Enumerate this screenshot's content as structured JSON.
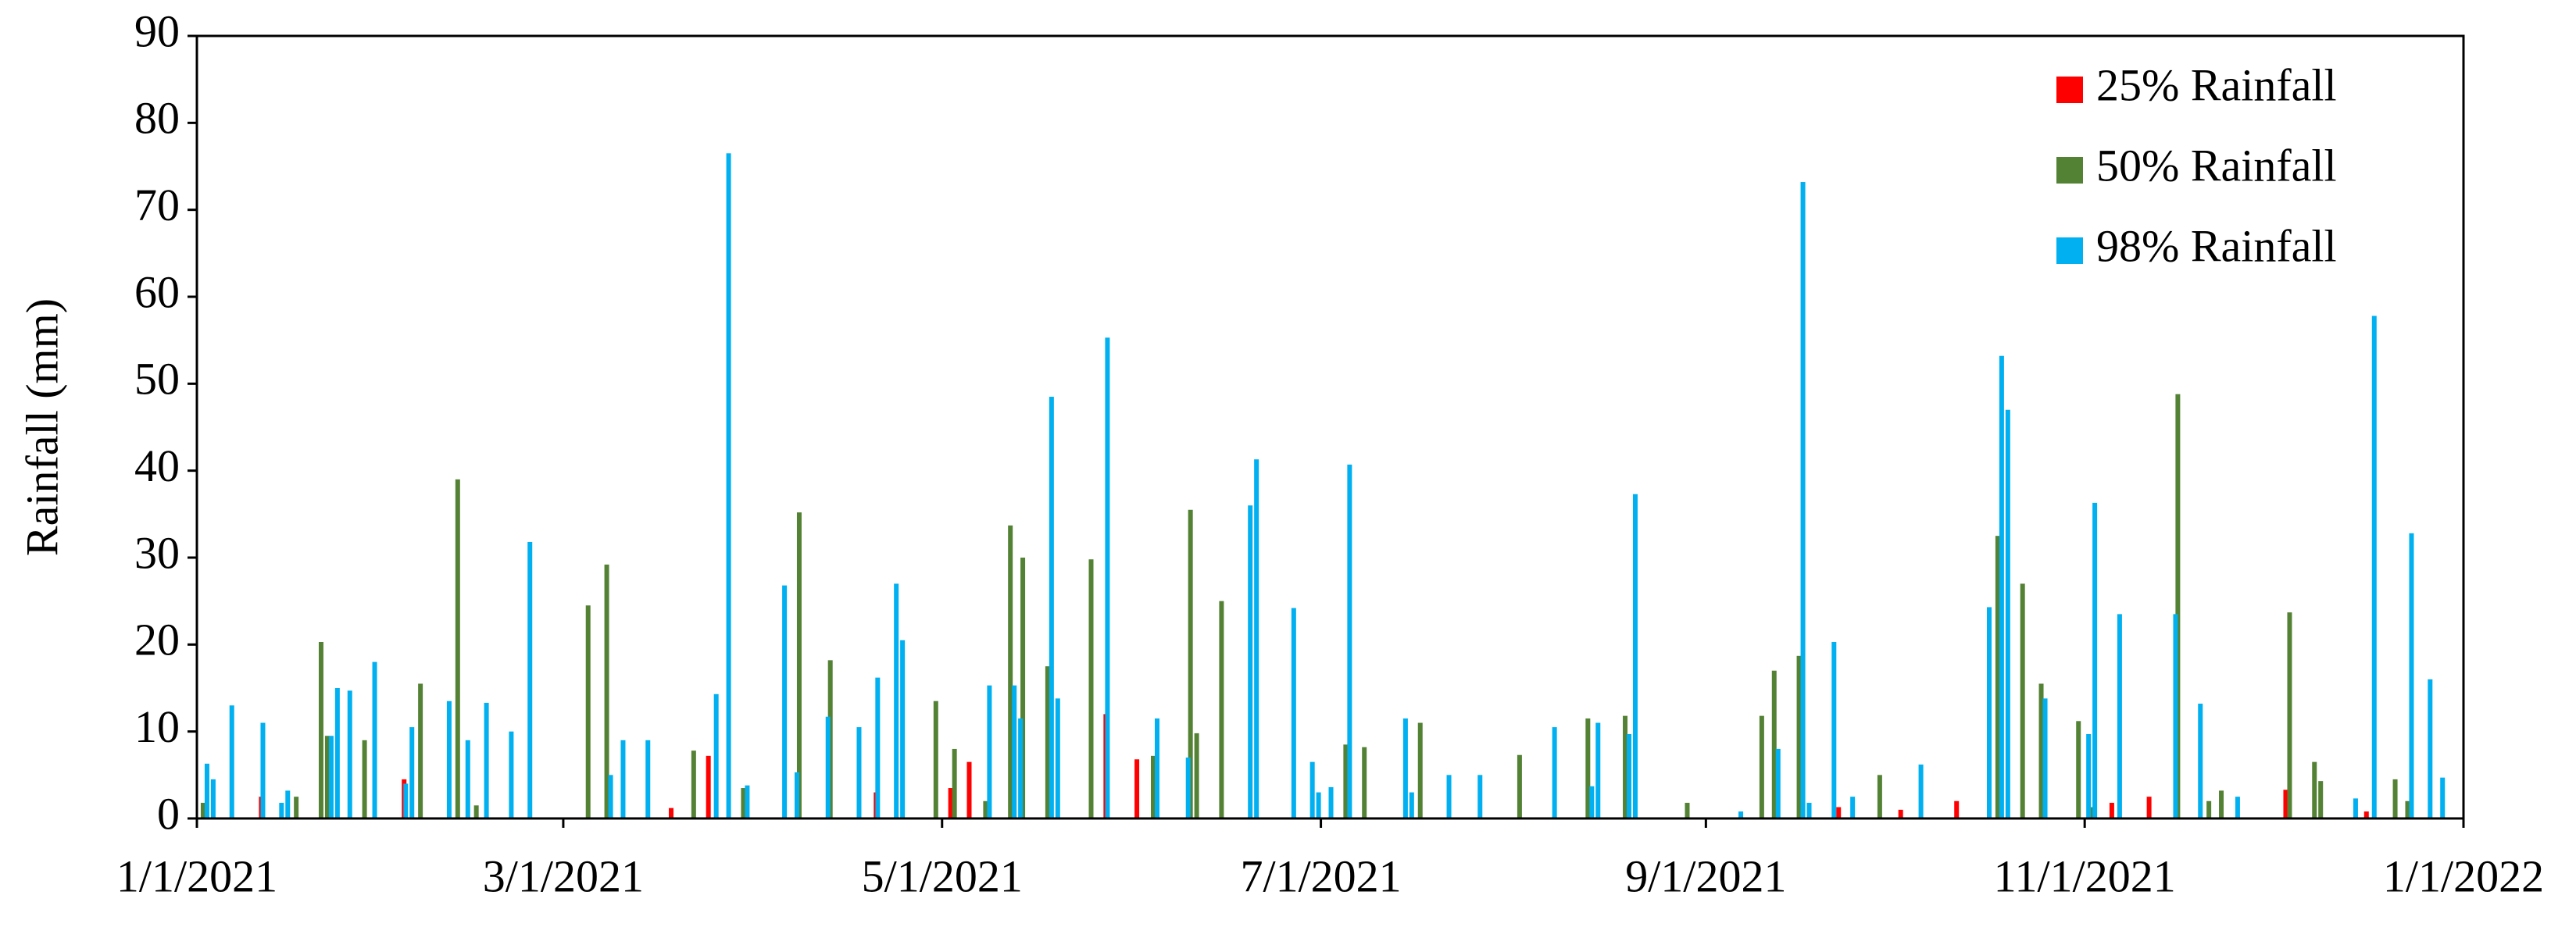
{
  "chart_data": {
    "type": "bar",
    "y_label": "Rainfall (mm)",
    "x": [
      "1/2/2021",
      "1/3/2021",
      "1/6/2021",
      "1/11/2021",
      "1/12/2021",
      "1/14/2021",
      "1/15/2021",
      "1/17/2021",
      "1/21/2021",
      "1/22/2021",
      "1/23/2021",
      "1/25/2021",
      "1/28/2021",
      "1/29/2021",
      "2/3/2021",
      "2/4/2021",
      "2/6/2021",
      "2/10/2021",
      "2/12/2021",
      "2/13/2021",
      "2/15/2021",
      "2/16/2021",
      "2/20/2021",
      "2/23/2021",
      "3/5/2021",
      "3/8/2021",
      "3/10/2021",
      "3/14/2021",
      "3/19/2021",
      "3/22/2021",
      "3/25/2021",
      "3/27/2021",
      "3/30/2021",
      "4/5/2021",
      "4/7/2021",
      "4/8/2021",
      "4/12/2021",
      "4/13/2021",
      "4/17/2021",
      "4/20/2021",
      "4/21/2021",
      "4/23/2021",
      "4/24/2021",
      "4/30/2021",
      "5/3/2021",
      "5/6/2021",
      "5/8/2021",
      "5/12/2021",
      "5/13/2021",
      "5/14/2021",
      "5/18/2021",
      "5/19/2021",
      "5/25/2021",
      "5/27/2021",
      "5/28/2021",
      "6/2/2021",
      "6/4/2021",
      "6/9/2021",
      "6/10/2021",
      "6/11/2021",
      "6/15/2021",
      "6/19/2021",
      "6/20/2021",
      "6/26/2021",
      "6/29/2021",
      "6/30/2021",
      "7/2/2021",
      "7/5/2021",
      "7/8/2021",
      "7/14/2021",
      "7/15/2021",
      "7/17/2021",
      "7/21/2021",
      "7/26/2021",
      "8/2/2021",
      "8/7/2021",
      "8/13/2021",
      "8/14/2021",
      "8/19/2021",
      "8/20/2021",
      "8/29/2021",
      "9/6/2021",
      "9/10/2021",
      "9/12/2021",
      "9/16/2021",
      "9/17/2021",
      "9/21/2021",
      "9/23/2021",
      "9/24/2021",
      "9/29/2021",
      "10/3/2021",
      "10/5/2021",
      "10/12/2021",
      "10/16/2021",
      "10/18/2021",
      "10/19/2021",
      "10/22/2021",
      "10/25/2021",
      "10/31/2021",
      "11/1/2021",
      "11/2/2021",
      "11/6/2021",
      "11/12/2021",
      "11/15/2021",
      "11/16/2021",
      "11/19/2021",
      "11/21/2021",
      "11/23/2021",
      "11/25/2021",
      "12/4/2021",
      "12/8/2021",
      "12/9/2021",
      "12/14/2021",
      "12/17/2021",
      "12/21/2021",
      "12/23/2021",
      "12/26/2021",
      "12/28/2021"
    ],
    "series": [
      {
        "name": "25% Rainfall",
        "color": "#ff0000",
        "values": [
          null,
          null,
          null,
          null,
          2.5,
          null,
          null,
          null,
          null,
          null,
          null,
          null,
          null,
          null,
          null,
          4.5,
          null,
          null,
          null,
          null,
          null,
          null,
          null,
          null,
          null,
          null,
          null,
          null,
          1.2,
          null,
          7.2,
          null,
          null,
          null,
          null,
          null,
          null,
          null,
          null,
          null,
          3,
          null,
          null,
          null,
          3.5,
          6.5,
          null,
          null,
          null,
          null,
          null,
          null,
          null,
          null,
          12,
          6.8,
          null,
          null,
          null,
          null,
          null,
          null,
          null,
          null,
          null,
          null,
          null,
          null,
          null,
          null,
          null,
          null,
          null,
          null,
          null,
          null,
          null,
          null,
          null,
          null,
          null,
          null,
          null,
          null,
          null,
          null,
          null,
          1.3,
          null,
          null,
          1,
          null,
          2,
          null,
          null,
          null,
          null,
          null,
          null,
          null,
          null,
          1.8,
          2.5,
          null,
          null,
          null,
          null,
          null,
          null,
          3.3,
          null,
          null,
          null,
          0.8,
          null,
          null,
          null,
          null
        ]
      },
      {
        "name": "50% Rainfall",
        "color": "#548235",
        "values": [
          1.8,
          null,
          null,
          null,
          null,
          null,
          null,
          2.5,
          20.3,
          9.5,
          null,
          null,
          9,
          null,
          null,
          null,
          15.5,
          null,
          39,
          null,
          1.5,
          null,
          null,
          null,
          24.5,
          29.2,
          null,
          null,
          null,
          7.8,
          null,
          null,
          3.5,
          null,
          null,
          35.2,
          null,
          18.2,
          null,
          null,
          null,
          null,
          null,
          13.5,
          8,
          null,
          2,
          33.7,
          null,
          30,
          17.5,
          null,
          29.8,
          null,
          null,
          null,
          7.2,
          null,
          35.5,
          9.8,
          25,
          null,
          null,
          null,
          null,
          null,
          null,
          8.5,
          8.2,
          null,
          null,
          11,
          null,
          null,
          7.3,
          null,
          11.5,
          null,
          11.8,
          null,
          1.8,
          null,
          11.8,
          17,
          18.7,
          null,
          null,
          null,
          null,
          5,
          null,
          null,
          null,
          null,
          32.5,
          null,
          27,
          15.5,
          11.2,
          null,
          1.3,
          null,
          null,
          null,
          48.8,
          null,
          2,
          3.2,
          null,
          23.7,
          6.5,
          4.3,
          null,
          null,
          4.5,
          2,
          null,
          null
        ]
      },
      {
        "name": "98% Rainfall",
        "color": "#00b0f0",
        "values": [
          6.3,
          4.5,
          13,
          11,
          null,
          1.8,
          3.2,
          null,
          null,
          9.5,
          15,
          14.7,
          null,
          18,
          4,
          10.5,
          null,
          13.5,
          null,
          9,
          null,
          13.3,
          10,
          31.8,
          null,
          5,
          9,
          9,
          null,
          null,
          14.3,
          76.5,
          3.8,
          26.8,
          5.3,
          null,
          11.7,
          null,
          10.5,
          16.2,
          null,
          27,
          20.5,
          null,
          null,
          null,
          15.3,
          15.3,
          11.5,
          null,
          48.5,
          13.8,
          null,
          55.3,
          null,
          null,
          11.5,
          7,
          null,
          null,
          null,
          36,
          41.3,
          24.2,
          6.5,
          3,
          3.6,
          40.7,
          null,
          11.5,
          3,
          null,
          5,
          5,
          null,
          10.5,
          3.7,
          11,
          9.7,
          37.3,
          null,
          0.8,
          null,
          8,
          73.2,
          1.8,
          20.3,
          null,
          2.5,
          null,
          null,
          6.2,
          null,
          24.3,
          53.2,
          47,
          null,
          13.8,
          null,
          9.7,
          36.3,
          23.5,
          null,
          23.5,
          null,
          13.2,
          null,
          null,
          2.5,
          null,
          null,
          null,
          2.3,
          57.8,
          null,
          32.8,
          16,
          4.7
        ]
      }
    ],
    "xlim": [
      "1/1/2021",
      "1/1/2022"
    ],
    "xticks": [
      "1/1/2021",
      "3/1/2021",
      "5/1/2021",
      "7/1/2021",
      "9/1/2021",
      "11/1/2021",
      "1/1/2022"
    ],
    "ylim": [
      0,
      90
    ],
    "yticks": [
      0,
      10,
      20,
      30,
      40,
      50,
      60,
      70,
      80,
      90
    ],
    "grid": false,
    "legend": "upper right"
  }
}
